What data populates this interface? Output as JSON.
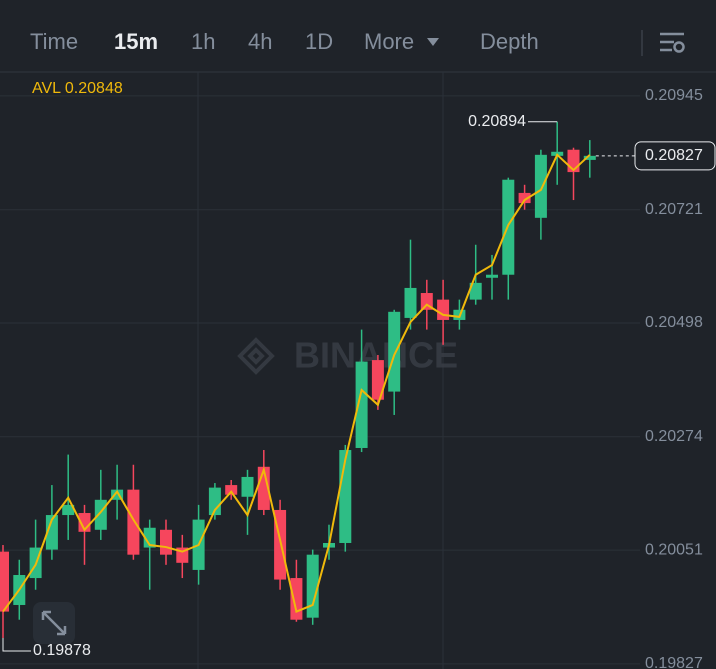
{
  "toolbar": {
    "tabs": [
      "Time",
      "15m",
      "1h",
      "4h",
      "1D",
      "More",
      "Depth"
    ],
    "active": 1
  },
  "chart_data": {
    "type": "candlestick",
    "open": [
      0.20048,
      0.19943,
      0.19996,
      0.20052,
      0.2012,
      0.20124,
      0.20091,
      0.2015,
      0.2017,
      0.20056,
      0.20091,
      0.20056,
      0.20012,
      0.2012,
      0.20179,
      0.20156,
      0.20215,
      0.2013,
      0.19996,
      0.19918,
      0.20056,
      0.20065,
      0.20252,
      0.20425,
      0.20363,
      0.20508,
      0.20557,
      0.20544,
      0.20504,
      0.20544,
      0.20587,
      0.20593,
      0.20754,
      0.20705,
      0.20827,
      0.20839,
      0.20819
    ],
    "high": [
      0.20061,
      0.20032,
      0.20111,
      0.20179,
      0.20239,
      0.2014,
      0.20209,
      0.20219,
      0.20219,
      0.20111,
      0.20111,
      0.20081,
      0.2014,
      0.20183,
      0.20189,
      0.20209,
      0.20248,
      0.2015,
      0.20032,
      0.20052,
      0.20101,
      0.20258,
      0.20485,
      0.20435,
      0.20524,
      0.20662,
      0.20583,
      0.20583,
      0.20544,
      0.20652,
      0.20632,
      0.20784,
      0.2077,
      0.20839,
      0.20894,
      0.20843,
      0.20858
    ],
    "low": [
      0.19878,
      0.19914,
      0.19973,
      0.20032,
      0.20071,
      0.20022,
      0.20071,
      0.20111,
      0.20032,
      0.19973,
      0.20022,
      0.19996,
      0.19983,
      0.20111,
      0.2015,
      0.20081,
      0.2012,
      0.19973,
      0.1991,
      0.19904,
      0.20032,
      0.20048,
      0.20244,
      0.20327,
      0.20317,
      0.20485,
      0.20485,
      0.20455,
      0.20485,
      0.20534,
      0.20544,
      0.20544,
      0.20721,
      0.20662,
      0.2077,
      0.2074,
      0.20784
    ],
    "close": [
      0.1993,
      0.20002,
      0.20056,
      0.2012,
      0.2014,
      0.20087,
      0.2015,
      0.2017,
      0.20042,
      0.20095,
      0.20042,
      0.20026,
      0.20111,
      0.20174,
      0.2016,
      0.20195,
      0.2013,
      0.19993,
      0.19914,
      0.20042,
      0.20065,
      0.20248,
      0.20422,
      0.20347,
      0.2052,
      0.20567,
      0.20524,
      0.20504,
      0.20524,
      0.20577,
      0.20593,
      0.2078,
      0.20734,
      0.20829,
      0.20835,
      0.20795,
      0.20827
    ],
    "ma": {
      "label": "AVL 0.20848",
      "color": "#f0b90b",
      "values": [
        0.1993,
        0.19973,
        0.20022,
        0.20111,
        0.20154,
        0.20091,
        0.20126,
        0.20166,
        0.20111,
        0.20061,
        0.20057,
        0.20048,
        0.20061,
        0.2013,
        0.20166,
        0.2012,
        0.20209,
        0.20071,
        0.1993,
        0.19943,
        0.20061,
        0.20229,
        0.20366,
        0.20337,
        0.20435,
        0.205,
        0.20534,
        0.20514,
        0.2051,
        0.20593,
        0.20612,
        0.20691,
        0.2074,
        0.2076,
        0.20829,
        0.20799,
        0.20829
      ]
    },
    "up_color": "#2ebd85",
    "down_color": "#f6465d",
    "ylim": [
      0.19817,
      0.20992
    ],
    "yticks": [
      0.19827,
      0.20051,
      0.20274,
      0.20498,
      0.20721,
      0.20945
    ],
    "grid": true,
    "high_marker": 0.20894,
    "low_marker": 0.19878,
    "last_price": 0.20827,
    "watermark": "BINANCE"
  }
}
